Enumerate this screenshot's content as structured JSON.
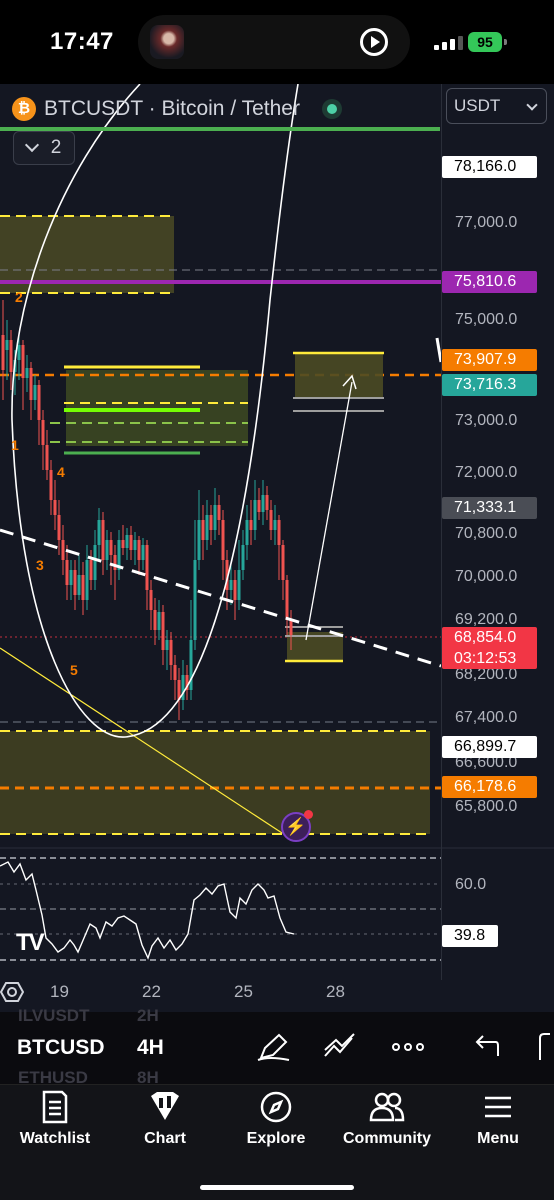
{
  "status_bar": {
    "time": "17:47",
    "battery": "95"
  },
  "chart": {
    "symbol_title": "BTCUSDT · Bitcoin / Tether",
    "symbol_icon": "₿",
    "collapse_count": "2",
    "currency": "USDT",
    "price_axis": [
      "77,000.0",
      "75,000.0",
      "73,000.0",
      "72,000.0",
      "70,800.0",
      "70,000.0",
      "69,200.0",
      "68,200.0",
      "67,400.0",
      "66,600.0",
      "65,800.0"
    ],
    "price_tags": {
      "t1": "78,166.0",
      "t2": "75,810.6",
      "t3": "73,907.9",
      "t4": "73,716.3",
      "t5": "71,333.1",
      "t6": "68,854.0",
      "t6_countdown": "03:12:53",
      "t7": "66,899.7",
      "t8": "66,178.6"
    },
    "rsi_level": "60.0",
    "rsi_tag": "39.8",
    "date_axis": [
      "19",
      "22",
      "25",
      "28"
    ],
    "wave_labels": [
      "1",
      "2",
      "3",
      "4",
      "5"
    ],
    "colors": {
      "background": "#141722",
      "bull": "#26a69a",
      "bear": "#ef5350",
      "current": "#f23645",
      "purple": "#9c27b0",
      "orange": "#f57c00"
    }
  },
  "symbol_row": {
    "symbol": "BTCUSD",
    "interval": "4H",
    "ghost_above": "ILVUSDT",
    "ghost_above_interval": "2H",
    "ghost_below": "ETHUSD",
    "ghost_below_interval": "8H"
  },
  "tools": [
    "pen-icon",
    "pattern-icon",
    "more-icon",
    "undo-icon",
    "redo-icon"
  ],
  "bottom_nav": [
    {
      "label": "Watchlist",
      "icon": "watchlist-icon"
    },
    {
      "label": "Chart",
      "icon": "chart-icon"
    },
    {
      "label": "Explore",
      "icon": "compass-icon"
    },
    {
      "label": "Community",
      "icon": "community-icon"
    },
    {
      "label": "Menu",
      "icon": "menu-icon"
    }
  ]
}
